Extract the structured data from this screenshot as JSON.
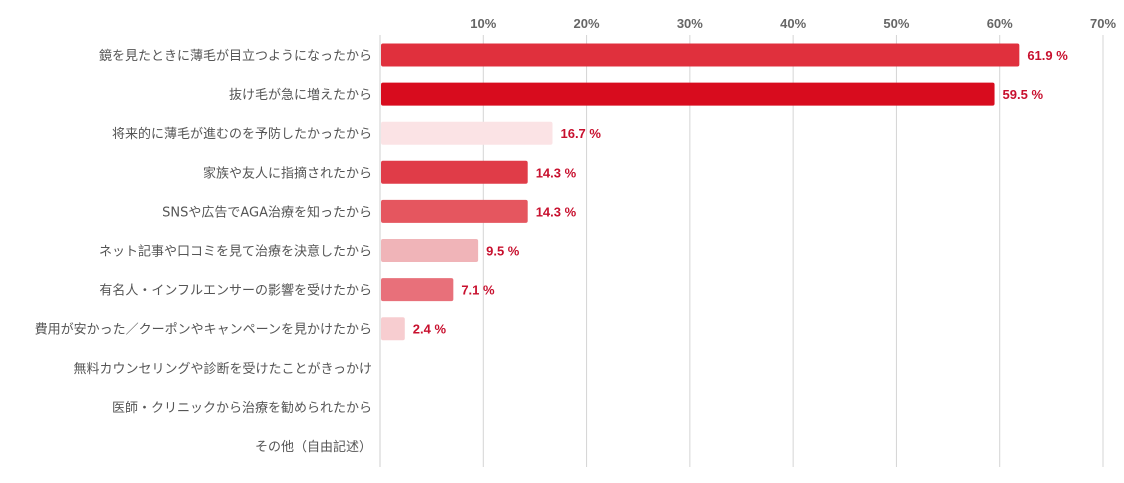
{
  "chart_data": {
    "type": "bar",
    "orientation": "horizontal",
    "categories": [
      "鏡を見たときに薄毛が目立つようになったから",
      "抜け毛が急に増えたから",
      "将来的に薄毛が進むのを予防したかったから",
      "家族や友人に指摘されたから",
      "SNSや広告でAGA治療を知ったから",
      "ネット記事や口コミを見て治療を決意したから",
      "有名人・インフルエンサーの影響を受けたから",
      "費用が安かった／クーポンやキャンペーンを見かけたから",
      "無料カウンセリングや診断を受けたことがきっかけ",
      "医師・クリニックから治療を勧められたから",
      "その他（自由記述）"
    ],
    "values": [
      61.9,
      59.5,
      16.7,
      14.3,
      14.3,
      9.5,
      7.1,
      2.4,
      0,
      0,
      0
    ],
    "data_labels": [
      "61.9 %",
      "59.5 %",
      "16.7 %",
      "14.3 %",
      "14.3 %",
      "9.5 %",
      "7.1 %",
      "2.4 %",
      null,
      null,
      null
    ],
    "bar_colors": [
      "#e0303d",
      "#d80c1e",
      "#fbe3e5",
      "#e03c48",
      "#e5565f",
      "#f0b4b8",
      "#e8707a",
      "#f7cdd0",
      null,
      null,
      null
    ],
    "xlim": [
      0,
      70
    ],
    "xticks": [
      10,
      20,
      30,
      40,
      50,
      60,
      70
    ],
    "xtick_labels": [
      "10%",
      "20%",
      "30%",
      "40%",
      "50%",
      "60%",
      "70%"
    ],
    "grid": true,
    "label_color": "#c8102e"
  }
}
